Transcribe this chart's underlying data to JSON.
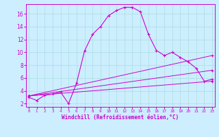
{
  "xlabel": "Windchill (Refroidissement éolien,°C)",
  "bg_color": "#cceeff",
  "grid_color": "#aadddd",
  "line_color": "#cc00cc",
  "x_ticks": [
    0,
    1,
    2,
    3,
    4,
    5,
    6,
    7,
    8,
    9,
    10,
    11,
    12,
    13,
    14,
    15,
    16,
    17,
    18,
    19,
    20,
    21,
    22,
    23
  ],
  "y_ticks": [
    2,
    4,
    6,
    8,
    10,
    12,
    14,
    16
  ],
  "xlim": [
    -0.3,
    23.3
  ],
  "ylim": [
    1.5,
    17.5
  ],
  "curve1_x": [
    0,
    1,
    2,
    3,
    4,
    5,
    6,
    7,
    8,
    9,
    10,
    11,
    12,
    13,
    14,
    15,
    16,
    17,
    18,
    19,
    20,
    21,
    22,
    23
  ],
  "curve1_y": [
    3.0,
    2.5,
    3.3,
    3.5,
    3.8,
    2.0,
    5.2,
    10.2,
    12.8,
    14.0,
    15.7,
    16.5,
    17.0,
    17.0,
    16.3,
    12.8,
    10.3,
    9.5,
    10.0,
    9.2,
    8.5,
    7.5,
    5.5,
    5.8
  ],
  "line2_x": [
    0,
    23
  ],
  "line2_y": [
    3.2,
    9.5
  ],
  "line3_x": [
    0,
    23
  ],
  "line3_y": [
    3.2,
    7.2
  ],
  "line4_x": [
    0,
    23
  ],
  "line4_y": [
    3.2,
    5.5
  ]
}
